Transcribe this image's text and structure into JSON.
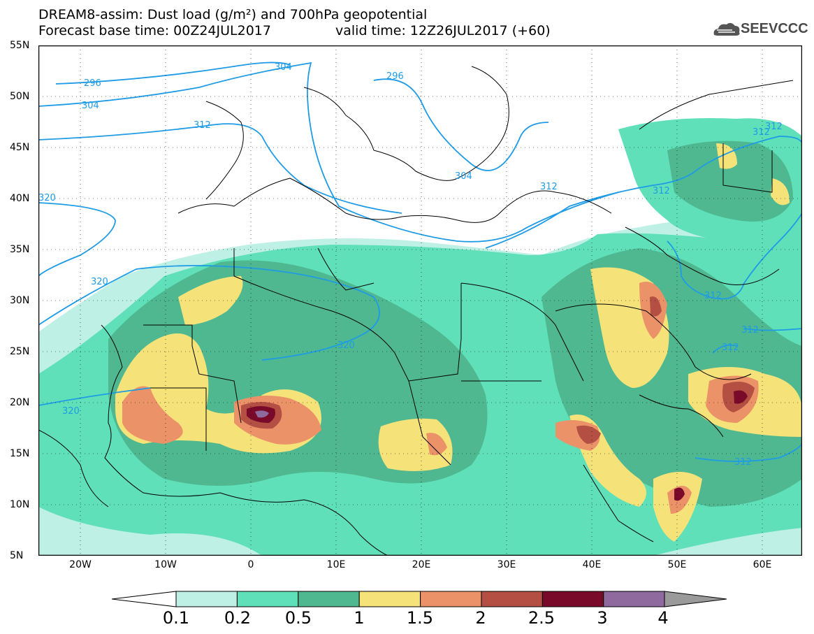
{
  "header": {
    "title_line1": "DREAM8-assim: Dust load (g/m²) and 700hPa geopotential",
    "title_line2": "Forecast base time: 00Z24JUL2017",
    "valid_time": "valid time: 12Z26JUL2017 (+60)",
    "logo_text": "SEEVCCC"
  },
  "axes": {
    "lat_labels": [
      "55N",
      "50N",
      "45N",
      "40N",
      "35N",
      "30N",
      "25N",
      "20N",
      "15N",
      "10N",
      "5N"
    ],
    "lon_labels": [
      "20W",
      "10W",
      "0",
      "10E",
      "20E",
      "30E",
      "40E",
      "50E",
      "60E"
    ]
  },
  "contours": {
    "labels": [
      "296",
      "304",
      "304",
      "296",
      "312",
      "312",
      "304",
      "312",
      "312",
      "320",
      "320",
      "320",
      "320",
      "312",
      "312",
      "312",
      "312",
      "312"
    ]
  },
  "colorbar": {
    "labels": [
      "0.1",
      "0.2",
      "0.5",
      "1",
      "1.5",
      "2",
      "2.5",
      "3",
      "4"
    ],
    "colors": [
      "#bff0e6",
      "#5fe0b8",
      "#50b890",
      "#f5e37a",
      "#ec9268",
      "#b44f43",
      "#7a0a2a",
      "#8e6a9e",
      "#9a9a9a"
    ]
  },
  "colors": {
    "map_bg": "#ffffff",
    "contour_line": "#1e9be6",
    "border": "#000000"
  }
}
